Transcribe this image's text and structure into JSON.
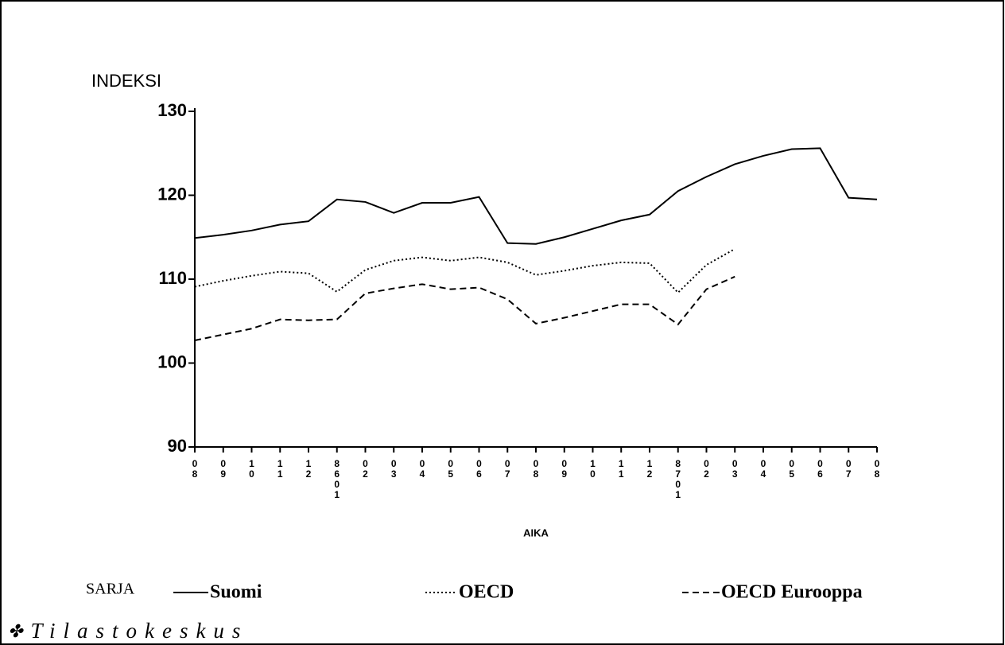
{
  "chart_data": {
    "type": "line",
    "y_label": "INDEKSI",
    "x_label": "AIKA",
    "legend_title": "SARJA",
    "source": "Tilastokeskus",
    "categories": [
      "08",
      "09",
      "10",
      "11",
      "12",
      "8601",
      "02",
      "03",
      "04",
      "05",
      "06",
      "07",
      "08",
      "09",
      "10",
      "11",
      "12",
      "8701",
      "02",
      "03",
      "04",
      "05",
      "06",
      "07",
      "08"
    ],
    "series": [
      {
        "name": "Suomi",
        "color": "#000000",
        "dash": "solid",
        "values": [
          114.9,
          115.3,
          115.8,
          116.5,
          116.9,
          119.5,
          119.2,
          117.9,
          119.1,
          119.1,
          119.8,
          114.3,
          114.2,
          115.0,
          116.0,
          117.0,
          117.7,
          120.5,
          122.2,
          123.7,
          124.7,
          125.5,
          125.6,
          119.7,
          119.5
        ]
      },
      {
        "name": "OECD",
        "color": "#000000",
        "dash": "dotted",
        "values": [
          109.1,
          109.8,
          110.4,
          110.9,
          110.7,
          108.5,
          111.1,
          112.2,
          112.6,
          112.2,
          112.6,
          112.0,
          110.5,
          111.0,
          111.6,
          112.0,
          111.9,
          108.4,
          111.7,
          113.6,
          null,
          null,
          null,
          null,
          null
        ]
      },
      {
        "name": "OECD Eurooppa",
        "color": "#000000",
        "dash": "dashed",
        "values": [
          102.7,
          103.4,
          104.1,
          105.2,
          105.1,
          105.2,
          108.3,
          108.9,
          109.4,
          108.8,
          109.0,
          107.6,
          104.7,
          105.4,
          106.2,
          107.0,
          107.0,
          104.6,
          108.8,
          110.3,
          null,
          null,
          null,
          null,
          null
        ]
      }
    ],
    "ylim": [
      90,
      130
    ],
    "yticks": [
      90,
      100,
      110,
      120,
      130
    ],
    "grid": false
  }
}
